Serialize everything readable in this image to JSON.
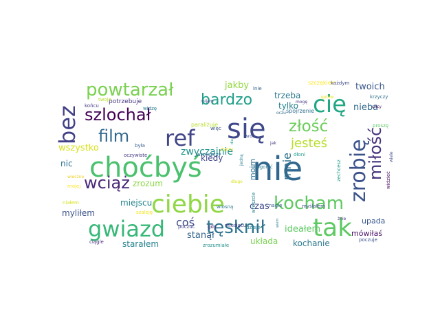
{
  "words": [
    {
      "text": "nie",
      "color": "#31668e"
    },
    {
      "text": "choćbyś",
      "color": "#4ac16d"
    },
    {
      "text": "się",
      "color": "#3f4889"
    },
    {
      "text": "ciebie",
      "color": "#8fd744"
    },
    {
      "text": "tak",
      "color": "#5ec962"
    },
    {
      "text": "gwiazd",
      "color": "#37b878"
    },
    {
      "text": "bez",
      "color": "#424086"
    },
    {
      "text": "cię",
      "color": "#22a884"
    },
    {
      "text": "ref",
      "color": "#414487"
    },
    {
      "text": "zrobię",
      "color": "#3b528b"
    },
    {
      "text": "miłość",
      "color": "#46337e"
    },
    {
      "text": "powtarzał",
      "color": "#7ad151"
    },
    {
      "text": "kocham",
      "color": "#5ec962"
    },
    {
      "text": "tęsknił",
      "color": "#2c728e"
    },
    {
      "text": "szlochał",
      "color": "#440154"
    },
    {
      "text": "film",
      "color": "#31688e"
    },
    {
      "text": "wciąż",
      "color": "#482878"
    },
    {
      "text": "złość",
      "color": "#6ccd5a"
    },
    {
      "text": "bardzo",
      "color": "#1f9e89"
    },
    {
      "text": "zwyczajnie",
      "color": "#20928c"
    },
    {
      "text": "jesteś",
      "color": "#b8de29"
    },
    {
      "text": "mnie",
      "color": "#2d708e"
    },
    {
      "text": "coś",
      "color": "#3e4a89"
    },
    {
      "text": "jakby",
      "color": "#93d741"
    },
    {
      "text": "trzeba",
      "color": "#2a788e"
    },
    {
      "text": "tylko",
      "color": "#26828e"
    },
    {
      "text": "twoich",
      "color": "#39568c"
    },
    {
      "text": "nieba",
      "color": "#31688e"
    },
    {
      "text": "kiedy",
      "color": "#404688"
    },
    {
      "text": "wszystko",
      "color": "#d8e219"
    },
    {
      "text": "nic",
      "color": "#2c728e"
    },
    {
      "text": "zrozum",
      "color": "#8bd646"
    },
    {
      "text": "miejscu",
      "color": "#25848e"
    },
    {
      "text": "myliłem",
      "color": "#3b528b"
    },
    {
      "text": "stanął",
      "color": "#33638d"
    },
    {
      "text": "starałem",
      "color": "#26828e"
    },
    {
      "text": "układa",
      "color": "#7ad151"
    },
    {
      "text": "kochanie",
      "color": "#2a788e"
    },
    {
      "text": "ideałem",
      "color": "#5ec962"
    },
    {
      "text": "mówiłaś",
      "color": "#471164"
    },
    {
      "text": "upada",
      "color": "#39568c"
    },
    {
      "text": "czas",
      "color": "#3e4a89"
    },
    {
      "text": "moim",
      "color": "#2c728e"
    },
    {
      "text": "potrzebuje",
      "color": "#463480"
    },
    {
      "text": "końcu",
      "color": "#453781"
    },
    {
      "text": "widzę",
      "color": "#2a788e"
    },
    {
      "text": "była",
      "color": "#365c8d"
    },
    {
      "text": "oczywiste",
      "color": "#443983"
    },
    {
      "text": "paraliżuje",
      "color": "#b5de2b"
    },
    {
      "text": "więc",
      "color": "#3b528b"
    },
    {
      "text": "wrzeszczy",
      "color": "#31688e"
    },
    {
      "text": "życiu",
      "color": "#e5e419"
    },
    {
      "text": "jedną",
      "color": "#287d8e"
    },
    {
      "text": "dogonić",
      "color": "#2a788e"
    },
    {
      "text": "nagle",
      "color": "#365c8d"
    },
    {
      "text": "myślałem",
      "color": "#3e4989"
    },
    {
      "text": "wiosną",
      "color": "#2a788e"
    },
    {
      "text": "miesiącu",
      "color": "#433e85"
    },
    {
      "text": "dzieje",
      "color": "#277f8e"
    },
    {
      "text": "gdy",
      "color": "#481f70"
    },
    {
      "text": "poczuć",
      "color": "#414487"
    },
    {
      "text": "ciągle",
      "color": "#472d7b"
    },
    {
      "text": "zrozumiałe",
      "color": "#21918c"
    },
    {
      "text": "poczuje",
      "color": "#3b528b"
    },
    {
      "text": "szczękiem",
      "color": "#fde725"
    },
    {
      "text": "każdym",
      "color": "#3f4788"
    },
    {
      "text": "krzyczy",
      "color": "#2e6f8e"
    },
    {
      "text": "ulicy",
      "color": "#460b5e"
    },
    {
      "text": "proszę",
      "color": "#5cc863"
    },
    {
      "text": "spojrzenie",
      "color": "#2e6e8e"
    },
    {
      "text": "mogę",
      "color": "#453882"
    },
    {
      "text": "oczu",
      "color": "#2f6b8e"
    },
    {
      "text": "mijam",
      "color": "#3f4889"
    },
    {
      "text": "twoje",
      "color": "#b5de2b"
    },
    {
      "text": "lnie",
      "color": "#32648e"
    },
    {
      "text": "dłoni",
      "color": "#1f988b"
    },
    {
      "text": "jak",
      "color": "#443a83"
    },
    {
      "text": "zechcesz",
      "color": "#1f9a8a"
    },
    {
      "text": "wiele",
      "color": "#3e4a89"
    },
    {
      "text": "widzieć",
      "color": "#470e61"
    },
    {
      "text": "wieczne",
      "color": "#ead01a"
    },
    {
      "text": "mojej",
      "color": "#fde725"
    },
    {
      "text": "niałem",
      "color": "#d5e21a"
    },
    {
      "text": "szaleję",
      "color": "#f1e51d"
    },
    {
      "text": "długo",
      "color": "#d8e219"
    },
    {
      "text": "dla",
      "color": "#1fa088"
    },
    {
      "text": "wreszcie",
      "color": "#26828e"
    },
    {
      "text": "żnie",
      "color": "#463480"
    },
    {
      "text": "gotów",
      "color": "#e3e418"
    },
    {
      "text": "wiem",
      "color": "#2a788e"
    },
    {
      "text": "wróć",
      "color": "#3f4889"
    }
  ]
}
